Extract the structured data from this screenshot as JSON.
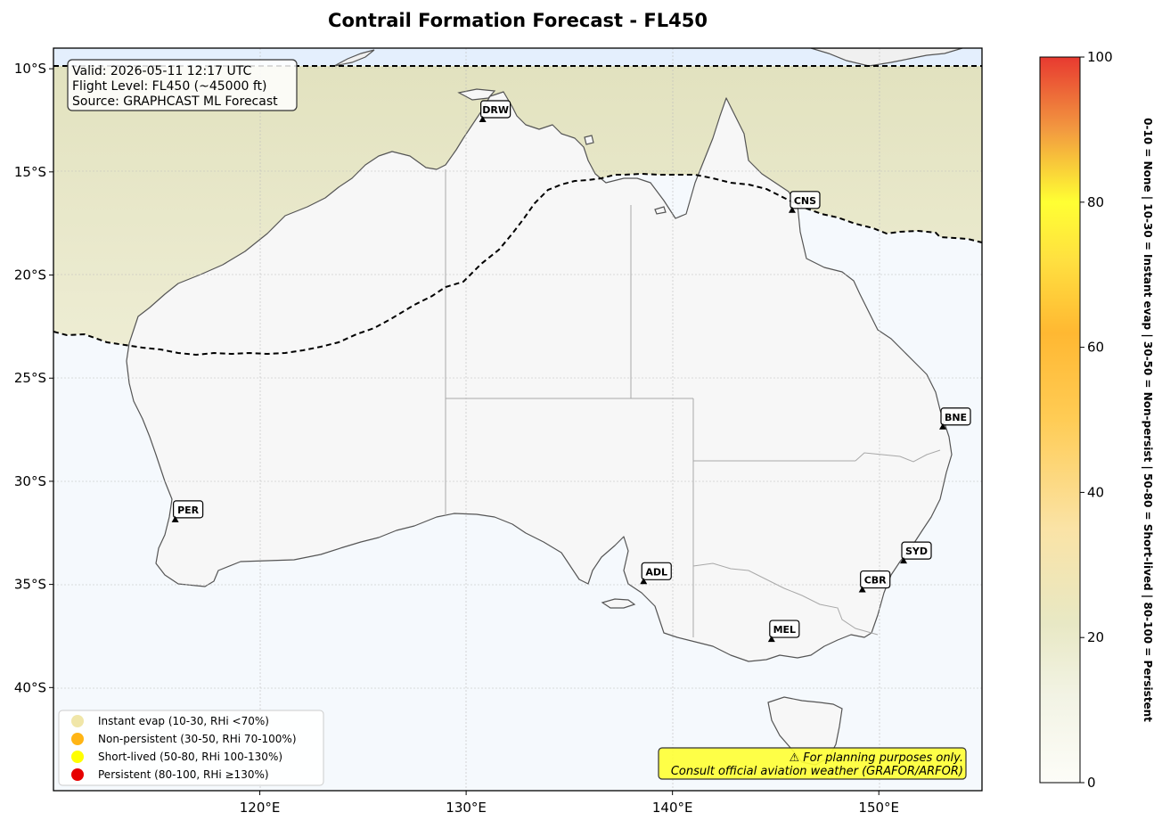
{
  "title": "Contrail Formation Forecast - FL450",
  "info_box": {
    "line1": "Valid: 2026-05-11 12:17 UTC",
    "line2": "Flight Level: FL450 (~45000 ft)",
    "line3": "Source: GRAPHCAST ML Forecast"
  },
  "map": {
    "lon_range": [
      110,
      155
    ],
    "lat_range": [
      -45,
      -9
    ],
    "x_ticks": [
      "120°E",
      "130°E",
      "140°E",
      "150°E"
    ],
    "y_ticks": [
      "10°S",
      "15°S",
      "20°S",
      "25°S",
      "30°S",
      "35°S",
      "40°S"
    ],
    "gridlines": true
  },
  "airports": [
    {
      "code": "DRW",
      "lon": 130.8,
      "lat": -12.5
    },
    {
      "code": "CNS",
      "lon": 145.8,
      "lat": -16.9
    },
    {
      "code": "BNE",
      "lon": 153.1,
      "lat": -27.4
    },
    {
      "code": "PER",
      "lon": 115.9,
      "lat": -31.9
    },
    {
      "code": "ADL",
      "lon": 138.6,
      "lat": -34.9
    },
    {
      "code": "SYD",
      "lon": 151.2,
      "lat": -33.9
    },
    {
      "code": "CBR",
      "lon": 149.2,
      "lat": -35.3
    },
    {
      "code": "MEL",
      "lon": 144.8,
      "lat": -37.7
    }
  ],
  "legend": [
    {
      "label": "Instant evap (10-30, RHi <70%)",
      "color": "#f0e6a8"
    },
    {
      "label": "Non-persistent (30-50, RHi 70-100%)",
      "color": "#ffb515"
    },
    {
      "label": "Short-lived (50-80, RHi 100-130%)",
      "color": "#ffff00"
    },
    {
      "label": "Persistent (80-100, RHi ≥130%)",
      "color": "#e60000"
    }
  ],
  "warning": {
    "line1": "⚠ For planning purposes only.",
    "line2": "Consult official aviation weather (GRAFOR/ARFOR)"
  },
  "colorbar": {
    "min": 0,
    "max": 100,
    "ticks": [
      "0",
      "20",
      "40",
      "60",
      "80",
      "100"
    ],
    "label": "0-10 = None  |  10-30 = Instant evap  |  30-50 = Non-persist  |  50-80 = Short-lived  |  80-100 = Persistent"
  }
}
